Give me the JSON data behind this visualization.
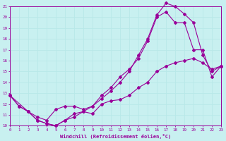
{
  "xlabel": "Windchill (Refroidissement éolien,°C)",
  "bg_color": "#c8f0f0",
  "line_color": "#990099",
  "grid_color": "#b8e8e8",
  "xmin": 0,
  "xmax": 23,
  "ymin": 10,
  "ymax": 21,
  "line1_x": [
    0,
    1,
    2,
    3,
    4,
    5,
    6,
    7,
    8,
    9,
    10,
    11,
    12,
    13,
    14,
    15,
    16,
    17,
    18,
    19,
    20,
    21,
    22,
    23
  ],
  "line1_y": [
    12.8,
    11.8,
    11.3,
    10.5,
    10.2,
    10.0,
    10.5,
    10.8,
    11.3,
    11.1,
    12.0,
    12.3,
    12.4,
    12.8,
    13.5,
    14.0,
    15.0,
    15.5,
    15.8,
    16.0,
    16.2,
    15.8,
    15.2,
    15.5
  ],
  "line2_x": [
    0,
    1,
    2,
    3,
    4,
    5,
    6,
    7,
    8,
    9,
    10,
    11,
    12,
    13,
    14,
    15,
    16,
    17,
    18,
    19,
    20,
    21,
    22,
    23
  ],
  "line2_y": [
    12.8,
    11.8,
    11.3,
    10.5,
    10.2,
    10.0,
    10.5,
    11.1,
    11.3,
    11.8,
    12.5,
    13.2,
    14.0,
    15.0,
    16.5,
    18.0,
    20.2,
    21.3,
    21.0,
    20.3,
    19.5,
    16.5,
    15.0,
    15.5
  ],
  "line3_x": [
    0,
    2,
    3,
    4,
    5,
    6,
    7,
    8,
    9,
    10,
    11,
    12,
    13,
    14,
    15,
    16,
    17,
    18,
    19,
    20,
    21,
    22,
    23
  ],
  "line3_y": [
    12.8,
    11.3,
    10.8,
    10.5,
    11.5,
    11.8,
    11.8,
    11.5,
    11.8,
    12.8,
    13.5,
    14.5,
    15.2,
    16.2,
    17.8,
    20.0,
    20.5,
    19.5,
    19.5,
    17.0,
    17.0,
    14.5,
    15.5
  ]
}
